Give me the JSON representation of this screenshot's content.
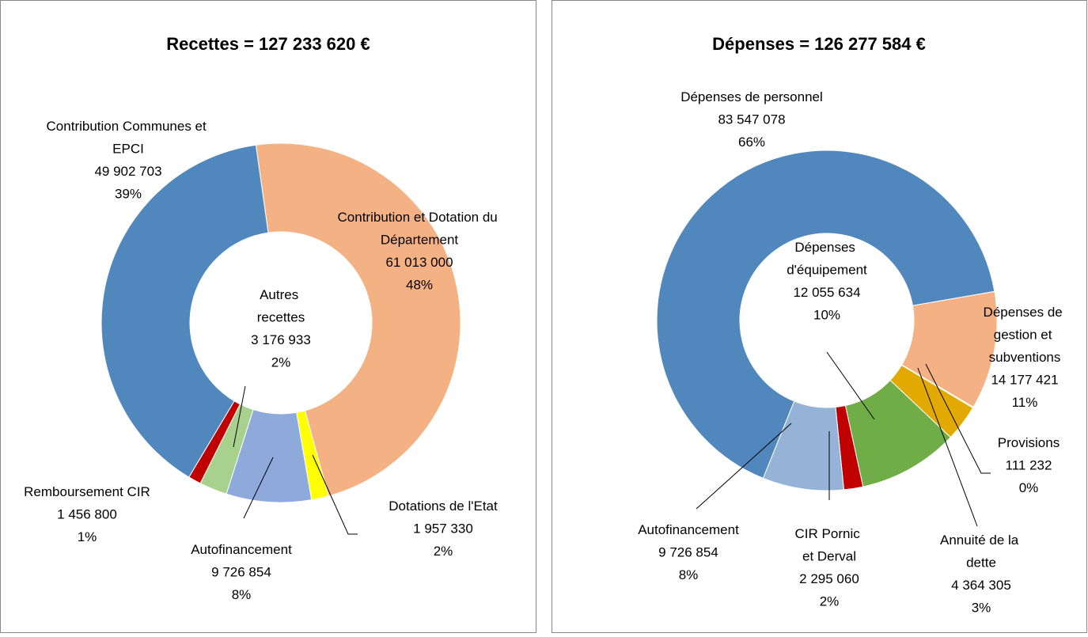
{
  "chart_data": [
    {
      "type": "donut",
      "title": "Recettes = 127 233 620 €",
      "categories": [
        "Contribution et Dotation du Département",
        "Dotations de l'Etat",
        "Autofinancement",
        "Autres recettes",
        "Remboursement CIR",
        "Contribution Communes et EPCI"
      ],
      "values": [
        61013000,
        1957330,
        9726854,
        3176933,
        1456800,
        49902703
      ],
      "value_labels": [
        "61 013 000",
        "1 957 330",
        "9 726 854",
        "3 176 933",
        "1 456 800",
        "49 902 703"
      ],
      "percent_labels": [
        "48%",
        "2%",
        "8%",
        "2%",
        "1%",
        "39%"
      ],
      "colors": [
        "#f4b183",
        "#ffff00",
        "#8eaadb",
        "#a9d18e",
        "#c00000",
        "#5087bd"
      ]
    },
    {
      "type": "donut",
      "title": "Dépenses = 126 277 584 €",
      "categories": [
        "Dépenses de personnel",
        "Dépenses de gestion et subventions",
        "Provisions",
        "Annuité de la dette",
        "Dépenses d'équipement",
        "CIR Pornic et Derval",
        "Autofinancement"
      ],
      "values": [
        83547078,
        14177421,
        111232,
        4364305,
        12055634,
        2295060,
        9726854
      ],
      "value_labels": [
        "83 547 078",
        "14 177 421",
        "111 232",
        "4 364 305",
        "12 055 634",
        "2 295 060",
        "9 726 854"
      ],
      "percent_labels": [
        "66%",
        "11%",
        "0%",
        "3%",
        "10%",
        "2%",
        "8%"
      ],
      "colors": [
        "#5087bd",
        "#f4b183",
        "#9bbb59",
        "#e2a900",
        "#70ad47",
        "#c00000",
        "#95b3d7"
      ]
    }
  ]
}
